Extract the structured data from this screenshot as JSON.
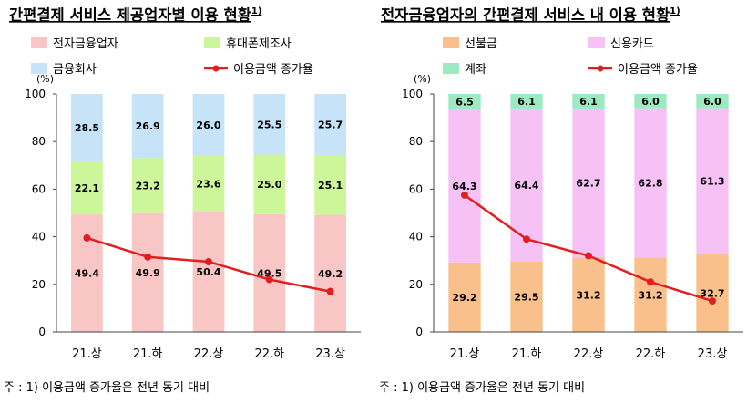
{
  "colors": {
    "electronic_finance": "#f9c6c6",
    "phone_maker": "#cdf59a",
    "financial_company": "#c6e3f7",
    "prepaid": "#f9c08c",
    "credit_card": "#f6c2f6",
    "account": "#9beac2",
    "line": "#e02020",
    "axis": "#444444"
  },
  "footnotes": {
    "left": "주 : 1) 이용금액 증가율은 전년 동기 대비",
    "right": "주 : 1) 이용금액 증가율은 전년 동기 대비"
  },
  "chart_data": [
    {
      "type": "bar",
      "stacked": true,
      "title": "간편결제 서비스 제공업자별 이용 현황",
      "title_superscript": "1)",
      "ylabel": "(%)",
      "ylim": [
        0,
        100
      ],
      "yticks": [
        0,
        20,
        40,
        60,
        80,
        100
      ],
      "categories": [
        "21.상",
        "21.하",
        "22.상",
        "22.하",
        "23.상"
      ],
      "legend_placement": "top",
      "series": [
        {
          "name": "전자금융업자",
          "color_key": "electronic_finance",
          "values": [
            49.4,
            49.9,
            50.4,
            49.5,
            49.2
          ],
          "labels": [
            "49.4",
            "49.9",
            "50.4",
            "49.5",
            "49.2"
          ]
        },
        {
          "name": "휴대폰제조사",
          "color_key": "phone_maker",
          "values": [
            22.1,
            23.2,
            23.6,
            25.0,
            25.1
          ],
          "labels": [
            "22.1",
            "23.2",
            "23.6",
            "25.0",
            "25.1"
          ]
        },
        {
          "name": "금융회사",
          "color_key": "financial_company",
          "values": [
            28.5,
            26.9,
            26.0,
            25.5,
            25.7
          ],
          "labels": [
            "28.5",
            "26.9",
            "26.0",
            "25.5",
            "25.7"
          ]
        }
      ],
      "line": {
        "name": "이용금액 증가율",
        "values": [
          39.5,
          31.5,
          29.5,
          22,
          17
        ]
      }
    },
    {
      "type": "bar",
      "stacked": true,
      "title": "전자금융업자의 간편결제 서비스 내 이용 현황",
      "title_superscript": "1)",
      "ylabel": "(%)",
      "ylim": [
        0,
        100
      ],
      "yticks": [
        0,
        20,
        40,
        60,
        80,
        100
      ],
      "categories": [
        "21.상",
        "21.하",
        "22.상",
        "22.하",
        "23.상"
      ],
      "legend_placement": "top",
      "series": [
        {
          "name": "선불금",
          "color_key": "prepaid",
          "values": [
            29.2,
            29.5,
            31.2,
            31.2,
            32.7
          ],
          "labels": [
            "29.2",
            "29.5",
            "31.2",
            "31.2",
            "32.7"
          ]
        },
        {
          "name": "신용카드",
          "color_key": "credit_card",
          "values": [
            64.3,
            64.4,
            62.7,
            62.8,
            61.3
          ],
          "labels": [
            "64.3",
            "64.4",
            "62.7",
            "62.8",
            "61.3"
          ]
        },
        {
          "name": "계좌",
          "color_key": "account",
          "values": [
            6.5,
            6.1,
            6.1,
            6.0,
            6.0
          ],
          "labels": [
            "6.5",
            "6.1",
            "6.1",
            "6.0",
            "6.0"
          ]
        }
      ],
      "line": {
        "name": "이용금액 증가율",
        "values": [
          57.5,
          39,
          32,
          21,
          13
        ]
      }
    }
  ]
}
